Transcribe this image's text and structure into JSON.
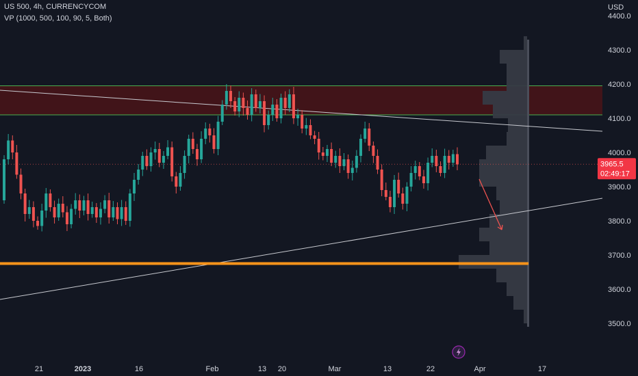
{
  "header": {
    "title": "US 500, 4h, CURRENCYCOM",
    "indicator": "VP (1000, 500, 100, 90, 5, Both)"
  },
  "chart_data": {
    "type": "candlestick",
    "currency_label": "USD",
    "ylim": [
      3470,
      4440
    ],
    "y_ticks": [
      3500,
      3600,
      3700,
      3800,
      3900,
      4000,
      4100,
      4200,
      4300,
      4400
    ],
    "y_tick_labels": [
      "3500.0",
      "3600.0",
      "3700.0",
      "3800.0",
      "3900.0",
      "4000.0",
      "4100.0",
      "4200.0",
      "4300.0",
      "4400.0"
    ],
    "x_labels": [
      {
        "label": "21",
        "bold": false
      },
      {
        "label": "2023",
        "bold": true
      },
      {
        "label": "16",
        "bold": false
      },
      {
        "label": "Feb",
        "bold": false
      },
      {
        "label": "13",
        "bold": false
      },
      {
        "label": "20",
        "bold": false
      },
      {
        "label": "Mar",
        "bold": false
      },
      {
        "label": "13",
        "bold": false
      },
      {
        "label": "22",
        "bold": false
      },
      {
        "label": "Apr",
        "bold": false
      },
      {
        "label": "17",
        "bold": false
      }
    ],
    "current_price": {
      "value": "3965.5",
      "countdown": "02:49:17",
      "price": 3965.5
    },
    "resistance_zone": [
      4110,
      4195
    ],
    "support_level": 3675,
    "colors": {
      "up": "#26a69a",
      "down": "#ef5350",
      "zone": "#4a1418",
      "zone_border": "#4caf50",
      "support": "#f7931a",
      "profile": "#363a45"
    },
    "candles": [
      [
        3860,
        3980
      ],
      [
        3980,
        4035
      ],
      [
        4035,
        4000
      ],
      [
        4000,
        3935
      ],
      [
        3935,
        3880
      ],
      [
        3880,
        3820
      ],
      [
        3820,
        3840
      ],
      [
        3840,
        3800
      ],
      [
        3800,
        3785
      ],
      [
        3785,
        3830
      ],
      [
        3830,
        3880
      ],
      [
        3880,
        3840
      ],
      [
        3840,
        3810
      ],
      [
        3810,
        3850
      ],
      [
        3850,
        3825
      ],
      [
        3825,
        3790
      ],
      [
        3790,
        3835
      ],
      [
        3835,
        3860
      ],
      [
        3860,
        3830
      ],
      [
        3830,
        3860
      ],
      [
        3860,
        3820
      ],
      [
        3820,
        3840
      ],
      [
        3840,
        3810
      ],
      [
        3810,
        3835
      ],
      [
        3835,
        3860
      ],
      [
        3860,
        3810
      ],
      [
        3810,
        3840
      ],
      [
        3840,
        3805
      ],
      [
        3805,
        3840
      ],
      [
        3840,
        3800
      ],
      [
        3800,
        3880
      ],
      [
        3880,
        3920
      ],
      [
        3920,
        3950
      ],
      [
        3950,
        3990
      ],
      [
        3990,
        3960
      ],
      [
        3960,
        4000
      ],
      [
        4000,
        4010
      ],
      [
        4010,
        3970
      ],
      [
        3970,
        3990
      ],
      [
        3990,
        4015
      ],
      [
        4015,
        3930
      ],
      [
        3930,
        3900
      ],
      [
        3900,
        3940
      ],
      [
        3940,
        3990
      ],
      [
        3990,
        4040
      ],
      [
        4040,
        4010
      ],
      [
        4010,
        3980
      ],
      [
        3980,
        4040
      ],
      [
        4040,
        4070
      ],
      [
        4070,
        4050
      ],
      [
        4050,
        4010
      ],
      [
        4010,
        4090
      ],
      [
        4090,
        4140
      ],
      [
        4140,
        4180
      ],
      [
        4180,
        4150
      ],
      [
        4150,
        4120
      ],
      [
        4120,
        4160
      ],
      [
        4160,
        4130
      ],
      [
        4130,
        4110
      ],
      [
        4110,
        4170
      ],
      [
        4170,
        4130
      ],
      [
        4130,
        4150
      ],
      [
        4150,
        4080
      ],
      [
        4080,
        4110
      ],
      [
        4110,
        4140
      ],
      [
        4140,
        4100
      ],
      [
        4100,
        4160
      ],
      [
        4160,
        4130
      ],
      [
        4130,
        4170
      ],
      [
        4170,
        4100
      ],
      [
        4100,
        4110
      ],
      [
        4110,
        4070
      ],
      [
        4070,
        4080
      ],
      [
        4080,
        4050
      ],
      [
        4050,
        4040
      ],
      [
        4040,
        4000
      ],
      [
        4000,
        3990
      ],
      [
        3990,
        4010
      ],
      [
        4010,
        3970
      ],
      [
        3970,
        3990
      ],
      [
        3990,
        3960
      ],
      [
        3960,
        3980
      ],
      [
        3980,
        3940
      ],
      [
        3940,
        3955
      ],
      [
        3955,
        3990
      ],
      [
        3990,
        4040
      ],
      [
        4040,
        4070
      ],
      [
        4070,
        4020
      ],
      [
        4020,
        3990
      ],
      [
        3990,
        3950
      ],
      [
        3950,
        3890
      ],
      [
        3890,
        3870
      ],
      [
        3870,
        3840
      ],
      [
        3840,
        3920
      ],
      [
        3920,
        3880
      ],
      [
        3880,
        3850
      ],
      [
        3850,
        3900
      ],
      [
        3900,
        3940
      ],
      [
        3940,
        3960
      ],
      [
        3960,
        3930
      ],
      [
        3930,
        3910
      ],
      [
        3910,
        3970
      ],
      [
        3970,
        3990
      ],
      [
        3990,
        3960
      ],
      [
        3960,
        3940
      ],
      [
        3940,
        3990
      ],
      [
        3990,
        3970
      ],
      [
        3970,
        3995
      ],
      [
        3995,
        3965
      ]
    ],
    "profile_left": [
      {
        "price": 3520,
        "len": 5
      },
      {
        "price": 3560,
        "len": 20
      },
      {
        "price": 3600,
        "len": 30
      },
      {
        "price": 3640,
        "len": 45
      },
      {
        "price": 3680,
        "len": 100
      },
      {
        "price": 3720,
        "len": 55
      },
      {
        "price": 3760,
        "len": 70
      },
      {
        "price": 3800,
        "len": 55
      },
      {
        "price": 3840,
        "len": 40
      },
      {
        "price": 3880,
        "len": 45
      },
      {
        "price": 3920,
        "len": 70
      },
      {
        "price": 3960,
        "len": 70
      },
      {
        "price": 4000,
        "len": 60
      },
      {
        "price": 4040,
        "len": 30
      },
      {
        "price": 4080,
        "len": 28
      },
      {
        "price": 4120,
        "len": 50
      },
      {
        "price": 4160,
        "len": 65
      },
      {
        "price": 4200,
        "len": 30
      },
      {
        "price": 4240,
        "len": 30
      },
      {
        "price": 4280,
        "len": 40
      },
      {
        "price": 4320,
        "len": 5
      }
    ]
  }
}
